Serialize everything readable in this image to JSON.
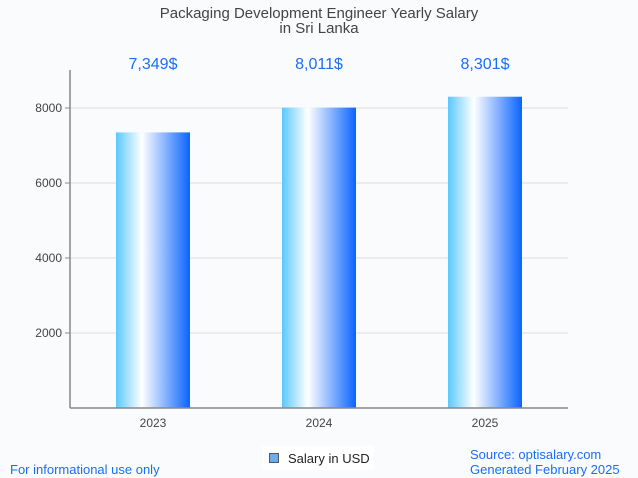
{
  "chart_data": {
    "type": "bar",
    "title": [
      "Packaging Development Engineer Yearly Salary",
      "in Sri Lanka"
    ],
    "categories": [
      "2023",
      "2024",
      "2025"
    ],
    "values": [
      7349,
      8011,
      8301
    ],
    "data_labels": [
      "7,349$",
      "8,011$",
      "8,301$"
    ],
    "yticks": [
      2000,
      4000,
      6000,
      8000
    ],
    "ylim": [
      0,
      9000
    ],
    "xlabel": "",
    "ylabel": "",
    "grid": true,
    "legend": {
      "label": "Salary in USD",
      "placement": "bottom-center"
    },
    "colors": {
      "bar_light": "#5cc8ff",
      "bar_mid": "#ffffff",
      "bar_dark": "#0a64ff",
      "label": "#1a6ef5"
    }
  },
  "footer": {
    "disclaimer": "For informational use only",
    "source": "Source: optisalary.com",
    "generated": "Generated February 2025"
  }
}
